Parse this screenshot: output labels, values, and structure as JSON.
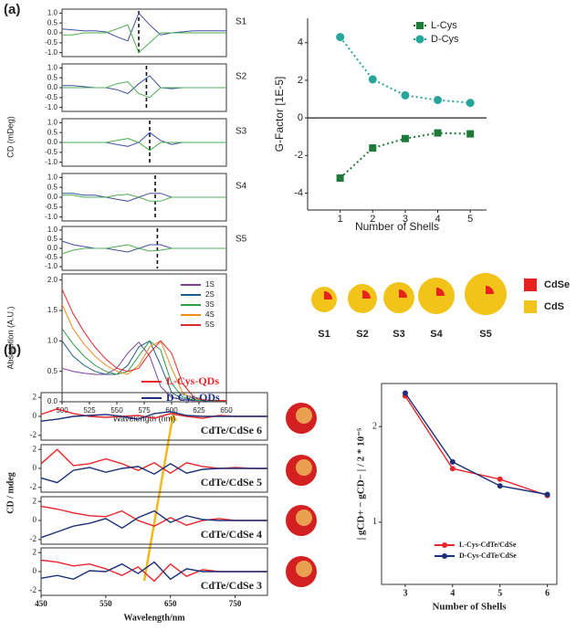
{
  "panel_labels": [
    "(a)",
    "(b)"
  ],
  "shell_diagram": {
    "labels": [
      "S1",
      "S2",
      "S3",
      "S4",
      "S5"
    ],
    "legend": [
      {
        "label": "CdSe",
        "color": "#e8231f"
      },
      {
        "label": "CdS",
        "color": "#f2c318"
      }
    ]
  },
  "chart_data": [
    {
      "type": "line",
      "label": "S1",
      "y_label": "CD (mDeg)",
      "reference_x": 570,
      "x": [
        500,
        510,
        520,
        530,
        540,
        550,
        560,
        570,
        580,
        590,
        600,
        610,
        620,
        630,
        640,
        650
      ],
      "xlim": [
        500,
        650
      ],
      "ylim": [
        -1.2,
        1.2
      ],
      "yticks": [
        {
          "value": -1,
          "label": "-1.0"
        },
        -0.5,
        {
          "value": 0,
          "label": "0.0"
        },
        0.5,
        {
          "value": 1,
          "label": "1.0"
        }
      ],
      "series": [
        {
          "color": "#3f51a3",
          "values": [
            0.2,
            0.15,
            0.1,
            0.1,
            0.05,
            -0.2,
            -0.4,
            1.0,
            0.4,
            -0.1,
            0,
            0.05,
            0.1,
            0.1,
            0.1,
            0.1
          ]
        },
        {
          "color": "#4caf50",
          "values": [
            -0.1,
            -0.1,
            0,
            0,
            0,
            0.2,
            0.4,
            -1.0,
            -0.5,
            0,
            0,
            0,
            0,
            0,
            0,
            0
          ]
        }
      ]
    },
    {
      "type": "line",
      "label": "S2",
      "reference_x": 577,
      "x": [
        500,
        510,
        520,
        530,
        540,
        550,
        560,
        570,
        580,
        590,
        600,
        610,
        620,
        630,
        640,
        650
      ],
      "xlim": [
        500,
        650
      ],
      "ylim": [
        -1.2,
        1.2
      ],
      "yticks": [
        {
          "value": -1,
          "label": "-1.0"
        },
        -0.5,
        {
          "value": 0,
          "label": "0.0"
        },
        0.5,
        {
          "value": 1,
          "label": "1.0"
        }
      ],
      "series": [
        {
          "color": "#3f51a3",
          "values": [
            0.1,
            0.1,
            0.05,
            0,
            0,
            -0.1,
            -0.3,
            0.2,
            0.6,
            0,
            -0.05,
            0,
            0,
            0,
            0,
            0
          ]
        },
        {
          "color": "#4caf50",
          "values": [
            0,
            0,
            0,
            0,
            0,
            0.2,
            0.3,
            -0.3,
            -0.5,
            0,
            0,
            0,
            0,
            0,
            0,
            0
          ]
        }
      ]
    },
    {
      "type": "line",
      "label": "S3",
      "reference_x": 580,
      "x": [
        500,
        510,
        520,
        530,
        540,
        550,
        560,
        570,
        580,
        590,
        600,
        610,
        620,
        630,
        640,
        650
      ],
      "xlim": [
        500,
        650
      ],
      "ylim": [
        -1.2,
        1.2
      ],
      "yticks": [
        {
          "value": -1,
          "label": "-1.0"
        },
        -0.5,
        {
          "value": 0,
          "label": "0.0"
        },
        0.5,
        {
          "value": 1,
          "label": "1.0"
        }
      ],
      "series": [
        {
          "color": "#3f51a3",
          "values": [
            0,
            0,
            0,
            0,
            0,
            -0.1,
            -0.2,
            0,
            0.5,
            0.1,
            -0.1,
            0,
            0,
            0,
            0,
            0
          ]
        },
        {
          "color": "#4caf50",
          "values": [
            0,
            0,
            0,
            0,
            0,
            0.1,
            0.2,
            0,
            -0.4,
            0,
            0,
            0,
            0,
            0,
            0,
            0
          ]
        }
      ]
    },
    {
      "type": "line",
      "label": "S4",
      "reference_x": 585,
      "x": [
        500,
        510,
        520,
        530,
        540,
        550,
        560,
        570,
        580,
        590,
        600,
        610,
        620,
        630,
        640,
        650
      ],
      "xlim": [
        500,
        650
      ],
      "ylim": [
        -1.2,
        1.2
      ],
      "yticks": [
        {
          "value": -1,
          "label": "-1.0"
        },
        -0.5,
        {
          "value": 0,
          "label": "0.0"
        },
        0.5,
        {
          "value": 1,
          "label": "1.0"
        }
      ],
      "series": [
        {
          "color": "#3f51a3",
          "values": [
            0.2,
            0.2,
            0.1,
            0.1,
            0,
            -0.1,
            -0.2,
            0,
            0.2,
            0.2,
            0,
            0,
            0,
            0,
            0,
            0
          ]
        },
        {
          "color": "#4caf50",
          "values": [
            0.1,
            0.1,
            0,
            0,
            0,
            0.1,
            0.15,
            0,
            -0.2,
            -0.2,
            0,
            0,
            0,
            0,
            0,
            0
          ]
        }
      ]
    },
    {
      "type": "line",
      "label": "S5",
      "reference_x": 587,
      "x": [
        500,
        510,
        520,
        530,
        540,
        550,
        560,
        570,
        580,
        590,
        600,
        610,
        620,
        630,
        640,
        650
      ],
      "xlim": [
        500,
        650
      ],
      "ylim": [
        -1.2,
        1.2
      ],
      "yticks": [
        {
          "value": -1,
          "label": "-1.0"
        },
        -0.5,
        {
          "value": 0,
          "label": "0.0"
        },
        0.5,
        {
          "value": 1,
          "label": "1.0"
        }
      ],
      "series": [
        {
          "color": "#3f51a3",
          "values": [
            0.4,
            0.2,
            0.1,
            0,
            0,
            -0.1,
            -0.2,
            0,
            0.2,
            0.2,
            0,
            0,
            0,
            0,
            0,
            0
          ]
        },
        {
          "color": "#4caf50",
          "values": [
            -0.3,
            -0.1,
            0,
            0,
            0,
            0.1,
            0.2,
            0,
            -0.15,
            -0.1,
            0,
            0,
            0,
            0,
            0,
            0
          ]
        }
      ]
    },
    {
      "type": "line",
      "y_label": "Absorption (A.U.)",
      "x_label": "Wavelength (nm)",
      "legend": "upper right",
      "x": [
        500,
        510,
        520,
        530,
        540,
        550,
        560,
        570,
        580,
        590,
        600,
        610,
        620,
        630,
        640,
        650
      ],
      "xlim": [
        500,
        650
      ],
      "ylim": [
        0,
        2.1
      ],
      "xticks": [
        500,
        525,
        550,
        575,
        600,
        625,
        650
      ],
      "yticks": [
        {
          "value": 0,
          "label": "0.0"
        },
        0.5,
        {
          "value": 1,
          "label": "1.0"
        },
        1.5,
        {
          "value": 2,
          "label": "2.0"
        }
      ],
      "series": [
        {
          "name": "1S",
          "color": "#7b3f9e",
          "values": [
            0.55,
            0.5,
            0.47,
            0.45,
            0.45,
            0.55,
            0.8,
            0.98,
            0.75,
            0.25,
            0.07,
            0.03,
            0.02,
            0.02,
            0.02,
            0.02
          ]
        },
        {
          "name": "2S",
          "color": "#1f5f86",
          "values": [
            1.0,
            0.75,
            0.6,
            0.5,
            0.45,
            0.45,
            0.6,
            0.9,
            1.0,
            0.6,
            0.15,
            0.05,
            0.03,
            0.02,
            0.02,
            0.02
          ]
        },
        {
          "name": "3S",
          "color": "#2e9b4a",
          "values": [
            1.2,
            0.95,
            0.75,
            0.6,
            0.5,
            0.45,
            0.5,
            0.75,
            1.0,
            0.85,
            0.3,
            0.08,
            0.03,
            0.02,
            0.02,
            0.02
          ]
        },
        {
          "name": "4S",
          "color": "#f08a1c",
          "values": [
            1.6,
            1.2,
            0.95,
            0.75,
            0.6,
            0.5,
            0.45,
            0.6,
            0.9,
            1.0,
            0.55,
            0.15,
            0.05,
            0.03,
            0.02,
            0.02
          ]
        },
        {
          "name": "5S",
          "color": "#e0262b",
          "values": [
            1.85,
            1.45,
            1.15,
            0.9,
            0.7,
            0.55,
            0.5,
            0.55,
            0.8,
            1.0,
            0.8,
            0.3,
            0.08,
            0.03,
            0.02,
            0.02
          ]
        }
      ]
    },
    {
      "type": "scatter",
      "y_label": "G-Factor [1E-5]",
      "x_label": "Number of Shells",
      "legend": "upper right",
      "zero_line": true,
      "x": [
        1,
        2,
        3,
        4,
        5
      ],
      "xlim": [
        0,
        5.5
      ],
      "ylim": [
        -4.9,
        5.3
      ],
      "xticks": [
        1,
        2,
        3,
        4,
        5
      ],
      "yticks": [
        -4,
        -2,
        0,
        2,
        4
      ],
      "series": [
        {
          "name": "L-Cys",
          "color": "#1f7a3a",
          "marker": "square",
          "values": [
            -3.2,
            -1.6,
            -1.1,
            -0.8,
            -0.85
          ]
        },
        {
          "name": "D-Cys",
          "color": "#26a69a",
          "marker": "circle",
          "values": [
            4.3,
            2.05,
            1.2,
            0.95,
            0.8
          ]
        }
      ]
    },
    {
      "type": "line",
      "label": "CdTe/CdSe 6",
      "y_label": "CD / mdeg",
      "legend": "top",
      "x": [
        450,
        475,
        500,
        525,
        550,
        575,
        600,
        625,
        650,
        675,
        700,
        725,
        750,
        775,
        800
      ],
      "xlim": [
        450,
        800
      ],
      "ylim": [
        -2.5,
        2.5
      ],
      "yticks": [
        -2,
        0,
        2
      ],
      "series": [
        {
          "name": "L-Cys-QDs",
          "color": "#e8262b",
          "values": [
            0.2,
            0.8,
            0.3,
            0,
            -0.1,
            0,
            0.1,
            -0.2,
            0.3,
            0,
            -0.2,
            0.1,
            0,
            0,
            0
          ]
        },
        {
          "name": "D-Cys-QDs",
          "color": "#1c2f7a",
          "values": [
            -0.5,
            -0.3,
            0,
            0.1,
            0.2,
            0,
            -0.3,
            0.3,
            0.5,
            0.1,
            0,
            0,
            0,
            0,
            0
          ]
        }
      ]
    },
    {
      "type": "line",
      "label": "CdTe/CdSe 5",
      "x": [
        450,
        475,
        500,
        525,
        550,
        575,
        600,
        625,
        650,
        675,
        700,
        725,
        750,
        775,
        800
      ],
      "xlim": [
        450,
        800
      ],
      "ylim": [
        -2.5,
        2.5
      ],
      "yticks": [
        -2,
        0,
        2
      ],
      "series": [
        {
          "color": "#e8262b",
          "values": [
            0.5,
            2.0,
            0.3,
            0.5,
            1.0,
            0.5,
            -0.2,
            0.6,
            -0.5,
            0.6,
            0.2,
            0,
            0.1,
            0,
            0
          ]
        },
        {
          "color": "#1c2f7a",
          "values": [
            -1.0,
            -1.5,
            -0.2,
            0.1,
            -0.4,
            0,
            0.2,
            -0.6,
            0.5,
            -0.5,
            -0.1,
            0,
            0,
            0,
            0
          ]
        }
      ]
    },
    {
      "type": "line",
      "label": "CdTe/CdSe 4",
      "x": [
        450,
        475,
        500,
        525,
        550,
        575,
        600,
        625,
        650,
        675,
        700,
        725,
        750,
        775,
        800
      ],
      "xlim": [
        450,
        800
      ],
      "ylim": [
        -2.5,
        2.5
      ],
      "yticks": [
        -2,
        0,
        2
      ],
      "series": [
        {
          "color": "#e8262b",
          "values": [
            1.5,
            1.2,
            0.8,
            0.5,
            0.4,
            1.0,
            0,
            -0.6,
            0.3,
            -0.5,
            0,
            0.2,
            0,
            0,
            0
          ]
        },
        {
          "color": "#1c2f7a",
          "values": [
            -1.8,
            -1.2,
            -0.6,
            -0.3,
            0.2,
            -0.8,
            0.3,
            1.0,
            -0.2,
            0.5,
            0.1,
            0,
            0,
            0,
            0
          ]
        }
      ]
    },
    {
      "type": "line",
      "label": "CdTe/CdSe 3",
      "x_label": "Wavelength/nm",
      "xticks": [
        450,
        550,
        650,
        750
      ],
      "x": [
        450,
        475,
        500,
        525,
        550,
        575,
        600,
        625,
        650,
        675,
        700,
        725,
        750,
        775,
        800
      ],
      "xlim": [
        450,
        800
      ],
      "ylim": [
        -2.5,
        2.5
      ],
      "yticks": [
        -2,
        0,
        2
      ],
      "series": [
        {
          "color": "#e8262b",
          "values": [
            1.2,
            1.0,
            0.6,
            0.8,
            0.3,
            -0.4,
            0.5,
            -1.0,
            0.8,
            -0.5,
            0.2,
            0,
            0,
            0,
            0
          ]
        },
        {
          "color": "#1c2f7a",
          "values": [
            -0.7,
            -0.4,
            -0.8,
            0.1,
            0,
            0.8,
            -0.2,
            1.0,
            -0.8,
            0.3,
            0,
            0,
            0,
            0,
            0
          ]
        }
      ]
    },
    {
      "type": "line",
      "x_label": "Number of Shells",
      "y_label": "| gCD+ − gCD− | / 2 * 10⁻⁵",
      "legend": "lower right",
      "markers": true,
      "x": [
        3,
        4,
        5,
        6
      ],
      "xlim": [
        2.5,
        6.2
      ],
      "ylim": [
        0.35,
        2.45
      ],
      "xticks": [
        3,
        4,
        5,
        6
      ],
      "yticks": [
        1,
        2
      ],
      "series": [
        {
          "name": "L-Cys-CdTe/CdSe",
          "color": "#e8262b",
          "values": [
            2.32,
            1.56,
            1.45,
            1.28
          ]
        },
        {
          "name": "D-Cys-CdTe/CdSe",
          "color": "#1c2f7a",
          "values": [
            2.35,
            1.63,
            1.38,
            1.29
          ]
        }
      ]
    }
  ]
}
